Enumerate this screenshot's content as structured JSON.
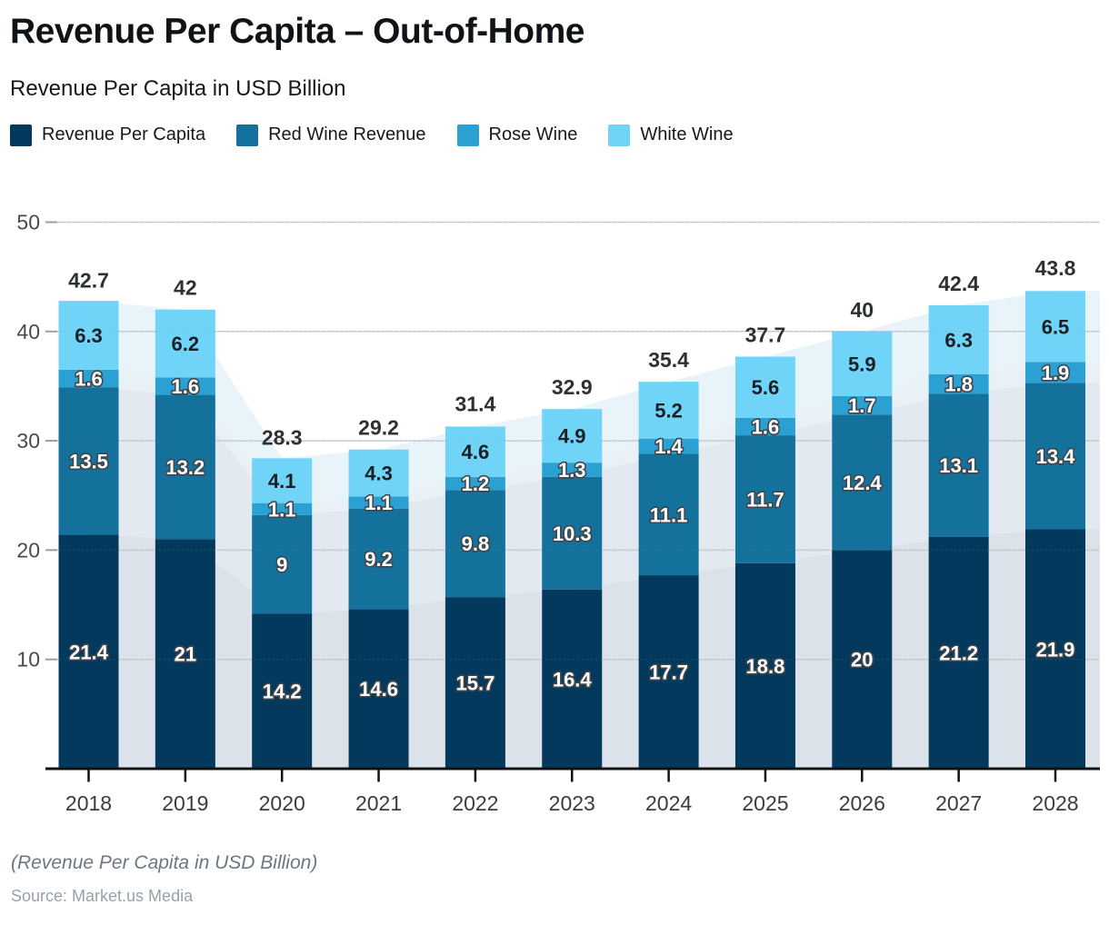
{
  "header": {
    "title": "Revenue Per Capita – Out-of-Home",
    "subtitle": "Revenue Per Capita in USD Billion"
  },
  "legend": [
    {
      "label": "Revenue Per Capita",
      "color": "#04395e"
    },
    {
      "label": "Red Wine Revenue",
      "color": "#13719c"
    },
    {
      "label": "Rose Wine",
      "color": "#2ba1d3"
    },
    {
      "label": "White Wine",
      "color": "#6fd4f7"
    }
  ],
  "chart_data": {
    "type": "bar",
    "stacked": true,
    "title": "Revenue Per Capita – Out-of-Home",
    "ylabel": "Revenue Per Capita in USD Billion",
    "xlabel": "",
    "categories": [
      "2018",
      "2019",
      "2020",
      "2021",
      "2022",
      "2023",
      "2024",
      "2025",
      "2026",
      "2027",
      "2028"
    ],
    "series": [
      {
        "name": "Revenue Per Capita",
        "color": "#04395e",
        "label_color": "#ffffff",
        "values": [
          21.4,
          21,
          14.2,
          14.6,
          15.7,
          16.4,
          17.7,
          18.8,
          20,
          21.2,
          21.9
        ]
      },
      {
        "name": "Red Wine Revenue",
        "color": "#13719c",
        "label_color": "#ffffff",
        "values": [
          13.5,
          13.2,
          9,
          9.2,
          9.8,
          10.3,
          11.1,
          11.7,
          12.4,
          13.1,
          13.4
        ]
      },
      {
        "name": "Rose Wine",
        "color": "#2ba1d3",
        "label_color": "#ffffff",
        "values": [
          1.6,
          1.6,
          1.1,
          1.1,
          1.2,
          1.3,
          1.4,
          1.6,
          1.7,
          1.8,
          1.9
        ]
      },
      {
        "name": "White Wine",
        "color": "#6fd4f7",
        "label_color": "#1b1f23",
        "values": [
          6.3,
          6.2,
          4.1,
          4.3,
          4.6,
          4.9,
          5.2,
          5.6,
          5.9,
          6.3,
          6.5
        ]
      }
    ],
    "totals": [
      42.7,
      42,
      28.3,
      29.2,
      31.4,
      32.9,
      35.4,
      37.7,
      40,
      42.4,
      43.8
    ],
    "ylim": [
      0,
      50
    ],
    "yticks": [
      10,
      20,
      30,
      40,
      50
    ],
    "grid": "horizontal",
    "legend_position": "top",
    "area_tints": [
      "#dbe2ea",
      "#e2e9f0",
      "#e9f0f6",
      "#e8f4fa"
    ],
    "gridline_color": "#cdd1d4",
    "axis_color": "#111111",
    "y_label_color": "#4a4a4a",
    "x_label_color": "#3c3c3c",
    "total_label_color": "#2e3133",
    "value_outline_color": "#3f464c"
  },
  "footer": {
    "note": "(Revenue Per Capita in USD Billion)",
    "source": "Source: Market.us Media"
  }
}
